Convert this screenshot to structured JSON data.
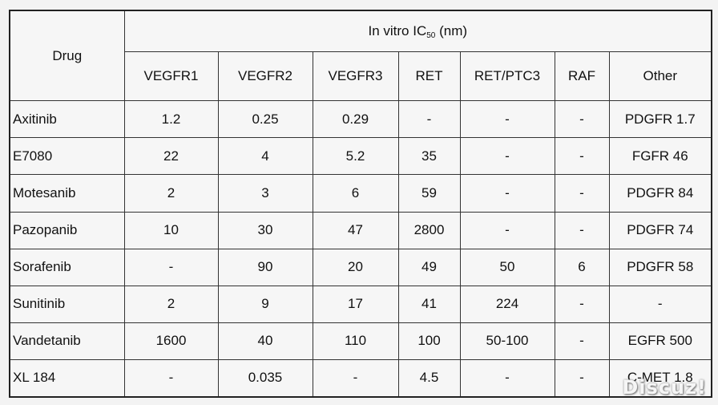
{
  "table": {
    "drug_header": "Drug",
    "group_header_prefix": "In vitro IC",
    "group_header_sub": "50",
    "group_header_suffix": " (nm)",
    "columns": [
      "VEGFR1",
      "VEGFR2",
      "VEGFR3",
      "RET",
      "RET/PTC3",
      "RAF",
      "Other"
    ],
    "rows": [
      {
        "drug": "Axitinib",
        "values": [
          "1.2",
          "0.25",
          "0.29",
          "-",
          "-",
          "-",
          "PDGFR 1.7"
        ]
      },
      {
        "drug": "E7080",
        "values": [
          "22",
          "4",
          "5.2",
          "35",
          "-",
          "-",
          "FGFR 46"
        ]
      },
      {
        "drug": "Motesanib",
        "values": [
          "2",
          "3",
          "6",
          "59",
          "-",
          "-",
          "PDGFR 84"
        ]
      },
      {
        "drug": "Pazopanib",
        "values": [
          "10",
          "30",
          "47",
          "2800",
          "-",
          "-",
          "PDGFR 74"
        ]
      },
      {
        "drug": "Sorafenib",
        "values": [
          "-",
          "90",
          "20",
          "49",
          "50",
          "6",
          "PDGFR 58"
        ]
      },
      {
        "drug": "Sunitinib",
        "values": [
          "2",
          "9",
          "17",
          "41",
          "224",
          "-",
          "-"
        ]
      },
      {
        "drug": "Vandetanib",
        "values": [
          "1600",
          "40",
          "110",
          "100",
          "50-100",
          "-",
          "EGFR 500"
        ]
      },
      {
        "drug": "XL 184",
        "values": [
          "-",
          "0.035",
          "-",
          "4.5",
          "-",
          "-",
          "C-MET 1.8"
        ]
      }
    ]
  },
  "watermark": "Discuz!"
}
